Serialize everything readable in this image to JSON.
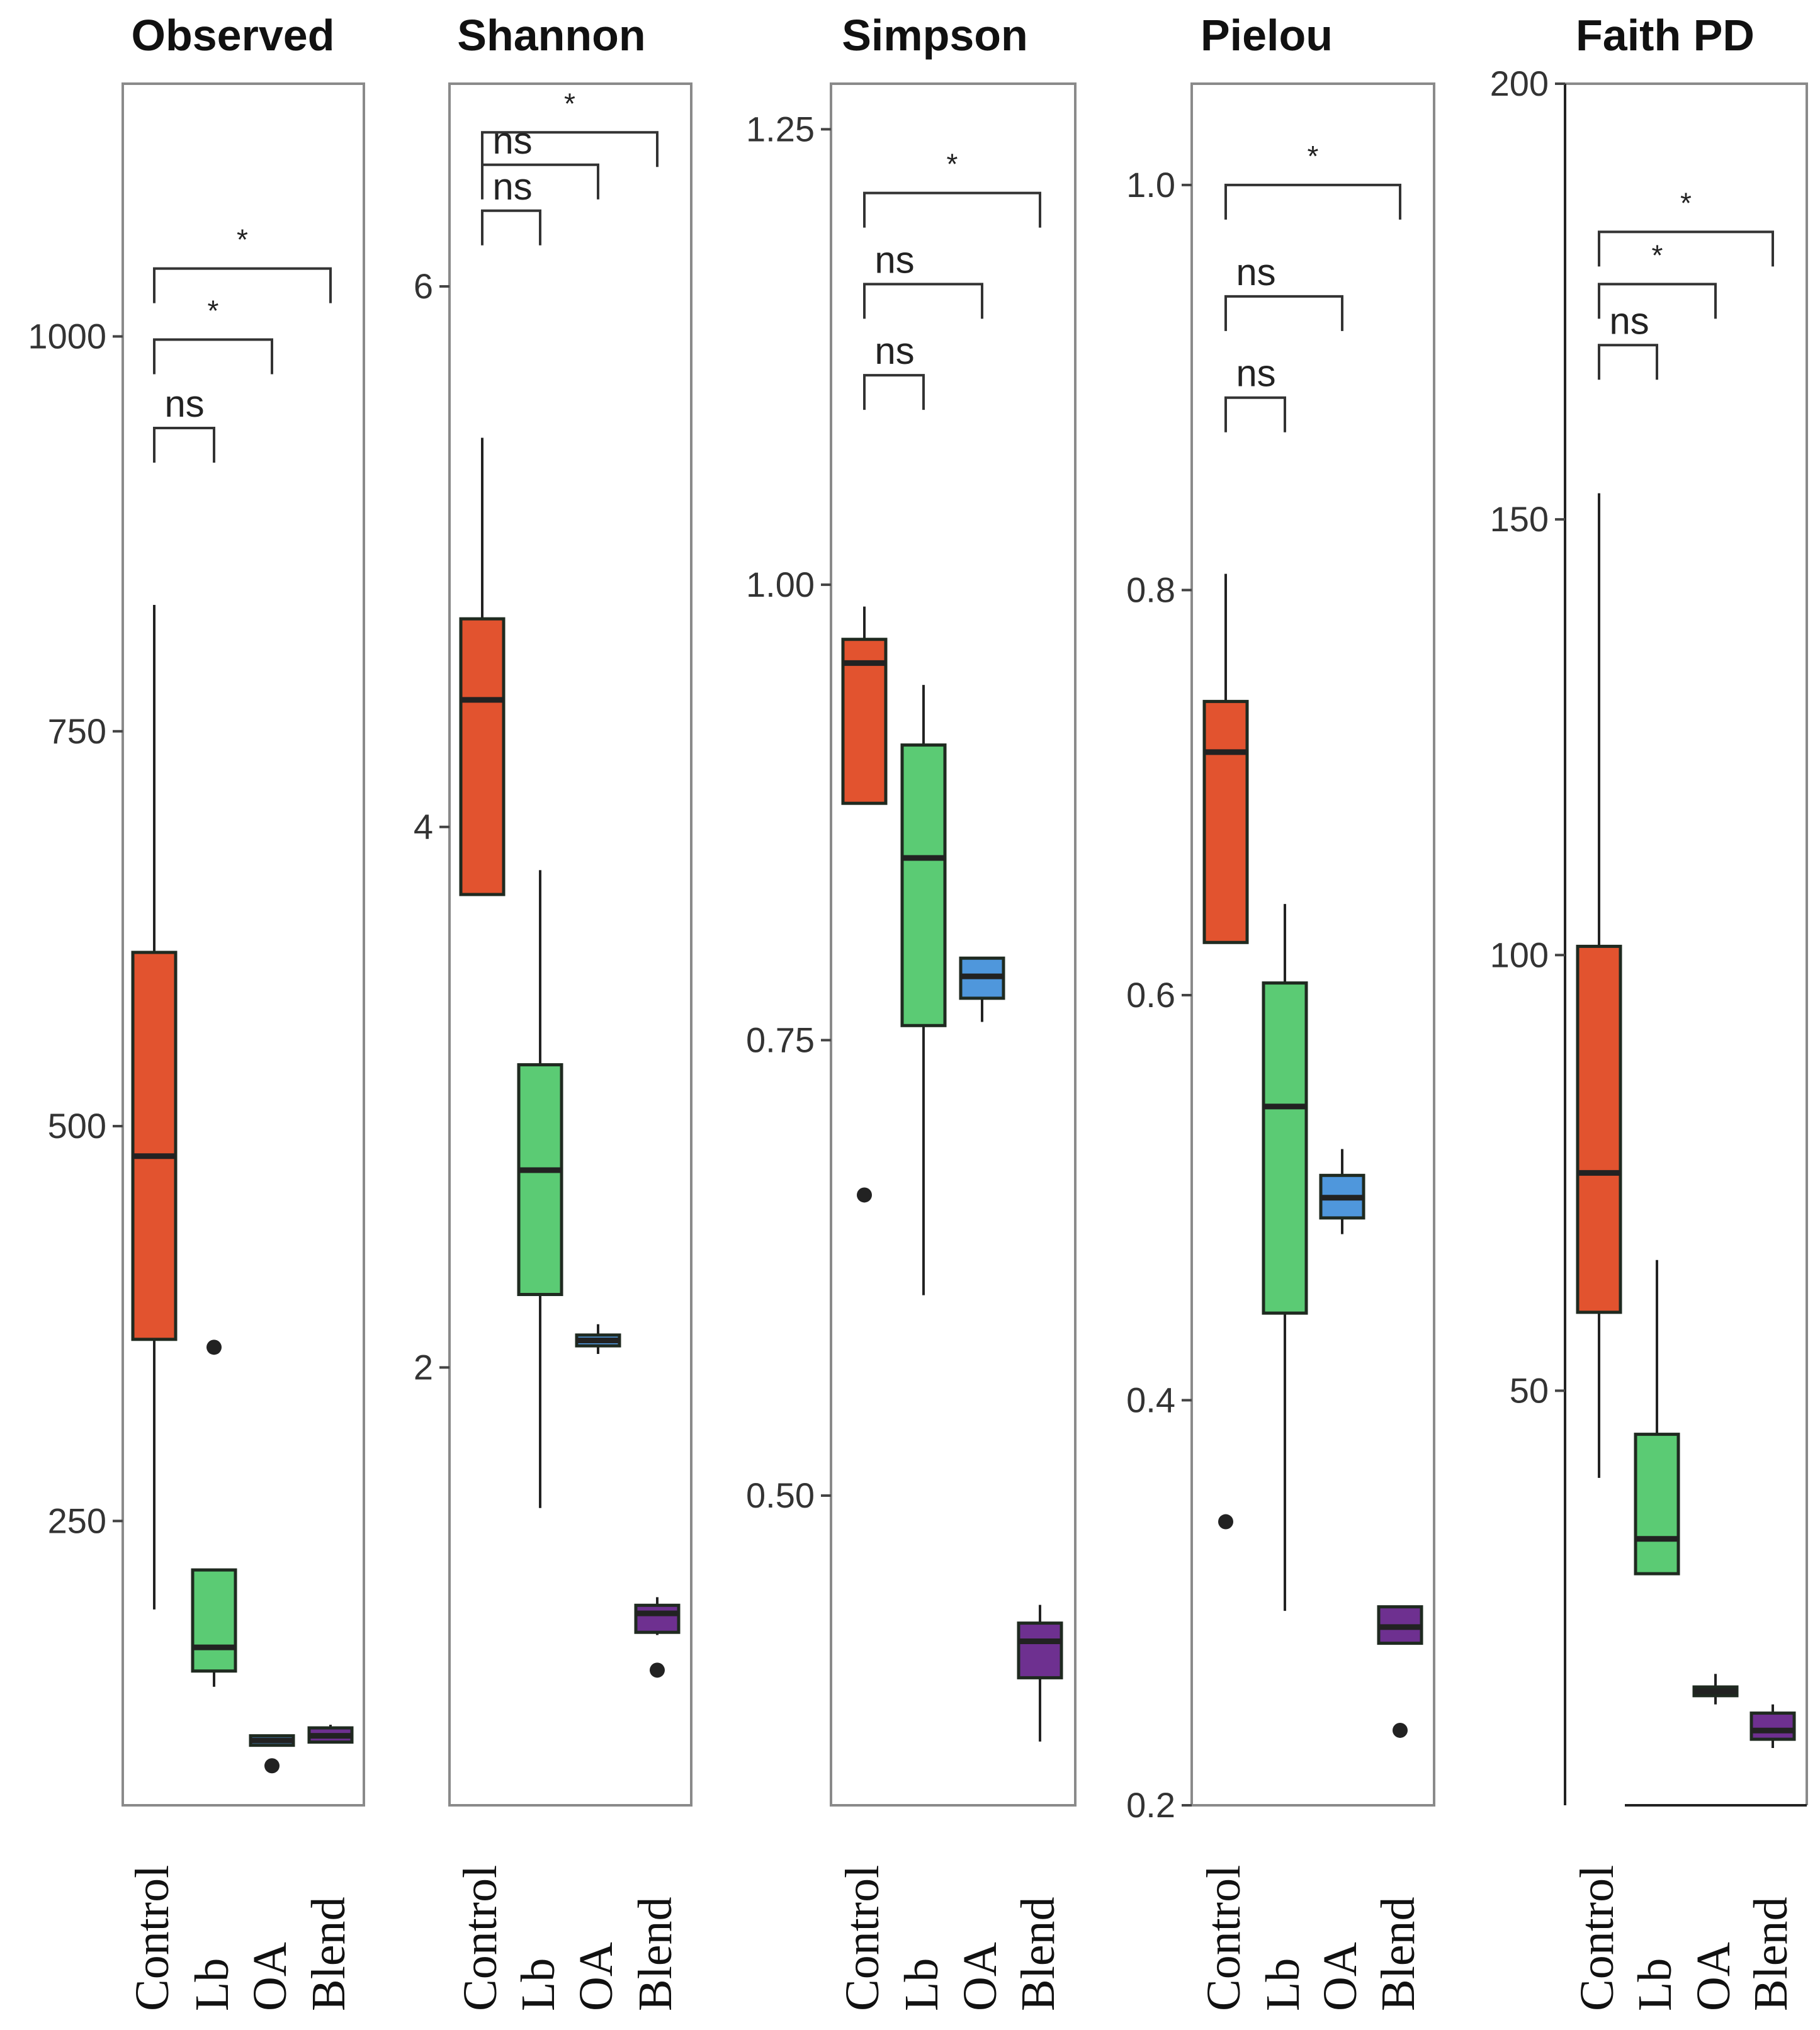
{
  "colors": {
    "Control": "#e2532f",
    "Lb": "#5bcb74",
    "OA": "#4f97dc",
    "Blend": "#6e3090"
  },
  "chart_data": [
    {
      "type": "boxplot",
      "title": "Observed",
      "categories": [
        "Control",
        "Lb",
        "OA",
        "Blend"
      ],
      "ylim": [
        70,
        1160
      ],
      "yticks": [
        250,
        500,
        750,
        1000
      ],
      "ytick_labels": [
        "250",
        "500",
        "750",
        "1000"
      ],
      "frame": "full",
      "boxes": [
        {
          "group": "Control",
          "low": 194,
          "q1": 365,
          "median": 481,
          "q3": 610,
          "high": 830,
          "outliers": []
        },
        {
          "group": "Lb",
          "low": 145,
          "q1": 155,
          "median": 170,
          "q3": 219,
          "high": 219,
          "outliers": [
            360
          ]
        },
        {
          "group": "OA",
          "low": 108,
          "q1": 108,
          "median": 111,
          "q3": 114,
          "high": 114,
          "outliers": [
            95
          ]
        },
        {
          "group": "Blend",
          "low": 110,
          "q1": 110,
          "median": 114,
          "q3": 119,
          "high": 121,
          "outliers": []
        }
      ],
      "comparisons": [
        {
          "from": "Control",
          "to": "Blend",
          "y": 1043,
          "label": "*"
        },
        {
          "from": "Control",
          "to": "OA",
          "y": 998,
          "label": "*"
        },
        {
          "from": "Control",
          "to": "Lb",
          "y": 942,
          "label": "ns"
        }
      ]
    },
    {
      "type": "boxplot",
      "title": "Shannon",
      "categories": [
        "Control",
        "Lb",
        "OA",
        "Blend"
      ],
      "ylim": [
        0.38,
        6.75
      ],
      "yticks": [
        2,
        4,
        6
      ],
      "ytick_labels": [
        "2",
        "4",
        "6"
      ],
      "frame": "full",
      "boxes": [
        {
          "group": "Control",
          "low": 3.75,
          "q1": 3.75,
          "median": 4.47,
          "q3": 4.77,
          "high": 5.44,
          "outliers": []
        },
        {
          "group": "Lb",
          "low": 1.48,
          "q1": 2.27,
          "median": 2.73,
          "q3": 3.12,
          "high": 3.84,
          "outliers": []
        },
        {
          "group": "OA",
          "low": 2.05,
          "q1": 2.08,
          "median": 2.1,
          "q3": 2.12,
          "high": 2.16,
          "outliers": []
        },
        {
          "group": "Blend",
          "low": 1.01,
          "q1": 1.02,
          "median": 1.09,
          "q3": 1.12,
          "high": 1.15,
          "outliers": [
            0.88
          ]
        }
      ],
      "comparisons": [
        {
          "from": "Control",
          "to": "Blend",
          "y": 6.57,
          "label": "*"
        },
        {
          "from": "Control",
          "to": "OA",
          "y": 6.45,
          "label": "ns"
        },
        {
          "from": "Control",
          "to": "Lb",
          "y": 6.28,
          "label": "ns"
        }
      ]
    },
    {
      "type": "boxplot",
      "title": "Simpson",
      "categories": [
        "Control",
        "Lb",
        "OA",
        "Blend"
      ],
      "ylim": [
        0.33,
        1.275
      ],
      "yticks": [
        0.5,
        0.75,
        1.0,
        1.25
      ],
      "ytick_labels": [
        "0.50",
        "0.75",
        "1.00",
        "1.25"
      ],
      "frame": "full",
      "boxes": [
        {
          "group": "Control",
          "low": 0.88,
          "q1": 0.88,
          "median": 0.957,
          "q3": 0.97,
          "high": 0.988,
          "outliers": [
            0.665
          ]
        },
        {
          "group": "Lb",
          "low": 0.61,
          "q1": 0.758,
          "median": 0.85,
          "q3": 0.912,
          "high": 0.945,
          "outliers": []
        },
        {
          "group": "OA",
          "low": 0.76,
          "q1": 0.773,
          "median": 0.785,
          "q3": 0.795,
          "high": 0.795,
          "outliers": []
        },
        {
          "group": "Blend",
          "low": 0.365,
          "q1": 0.4,
          "median": 0.42,
          "q3": 0.43,
          "high": 0.44,
          "outliers": []
        }
      ],
      "comparisons": [
        {
          "from": "Control",
          "to": "Blend",
          "y": 1.215,
          "label": "*"
        },
        {
          "from": "Control",
          "to": "OA",
          "y": 1.165,
          "label": "ns"
        },
        {
          "from": "Control",
          "to": "Lb",
          "y": 1.115,
          "label": "ns"
        }
      ]
    },
    {
      "type": "boxplot",
      "title": "Pielou",
      "categories": [
        "Control",
        "Lb",
        "OA",
        "Blend"
      ],
      "ylim": [
        0.2,
        1.05
      ],
      "yticks": [
        0.2,
        0.4,
        0.6,
        0.8,
        1.0
      ],
      "ytick_labels": [
        "0.2",
        "0.4",
        "0.6",
        "0.8",
        "1.0"
      ],
      "frame": "full",
      "boxes": [
        {
          "group": "Control",
          "low": 0.626,
          "q1": 0.626,
          "median": 0.72,
          "q3": 0.745,
          "high": 0.808,
          "outliers": [
            0.34
          ]
        },
        {
          "group": "Lb",
          "low": 0.296,
          "q1": 0.443,
          "median": 0.545,
          "q3": 0.606,
          "high": 0.645,
          "outliers": []
        },
        {
          "group": "OA",
          "low": 0.482,
          "q1": 0.49,
          "median": 0.5,
          "q3": 0.511,
          "high": 0.524,
          "outliers": []
        },
        {
          "group": "Blend",
          "low": 0.28,
          "q1": 0.28,
          "median": 0.288,
          "q3": 0.298,
          "high": 0.298,
          "outliers": [
            0.237
          ]
        }
      ],
      "comparisons": [
        {
          "from": "Control",
          "to": "Blend",
          "y": 1.0,
          "label": "*"
        },
        {
          "from": "Control",
          "to": "OA",
          "y": 0.945,
          "label": "ns"
        },
        {
          "from": "Control",
          "to": "Lb",
          "y": 0.895,
          "label": "ns"
        }
      ]
    },
    {
      "type": "boxplot",
      "title": "Faith PD",
      "categories": [
        "Control",
        "Lb",
        "OA",
        "Blend"
      ],
      "ylim": [
        3,
        200
      ],
      "yticks": [
        50,
        100,
        150,
        200
      ],
      "ytick_labels": [
        "50",
        "100",
        "150",
        "200"
      ],
      "frame": "open-bottom-left",
      "boxes": [
        {
          "group": "Control",
          "low": 40,
          "q1": 59,
          "median": 75,
          "q3": 101,
          "high": 153,
          "outliers": []
        },
        {
          "group": "Lb",
          "low": 29,
          "q1": 29,
          "median": 33,
          "q3": 45,
          "high": 65,
          "outliers": []
        },
        {
          "group": "OA",
          "low": 14,
          "q1": 15,
          "median": 15.5,
          "q3": 16,
          "high": 17.5,
          "outliers": []
        },
        {
          "group": "Blend",
          "low": 9,
          "q1": 10,
          "median": 11,
          "q3": 13,
          "high": 14,
          "outliers": []
        }
      ],
      "comparisons": [
        {
          "from": "Control",
          "to": "Blend",
          "y": 183,
          "label": "*"
        },
        {
          "from": "Control",
          "to": "OA",
          "y": 177,
          "label": "*"
        },
        {
          "from": "Control",
          "to": "Lb",
          "y": 170,
          "label": "ns"
        }
      ]
    }
  ]
}
